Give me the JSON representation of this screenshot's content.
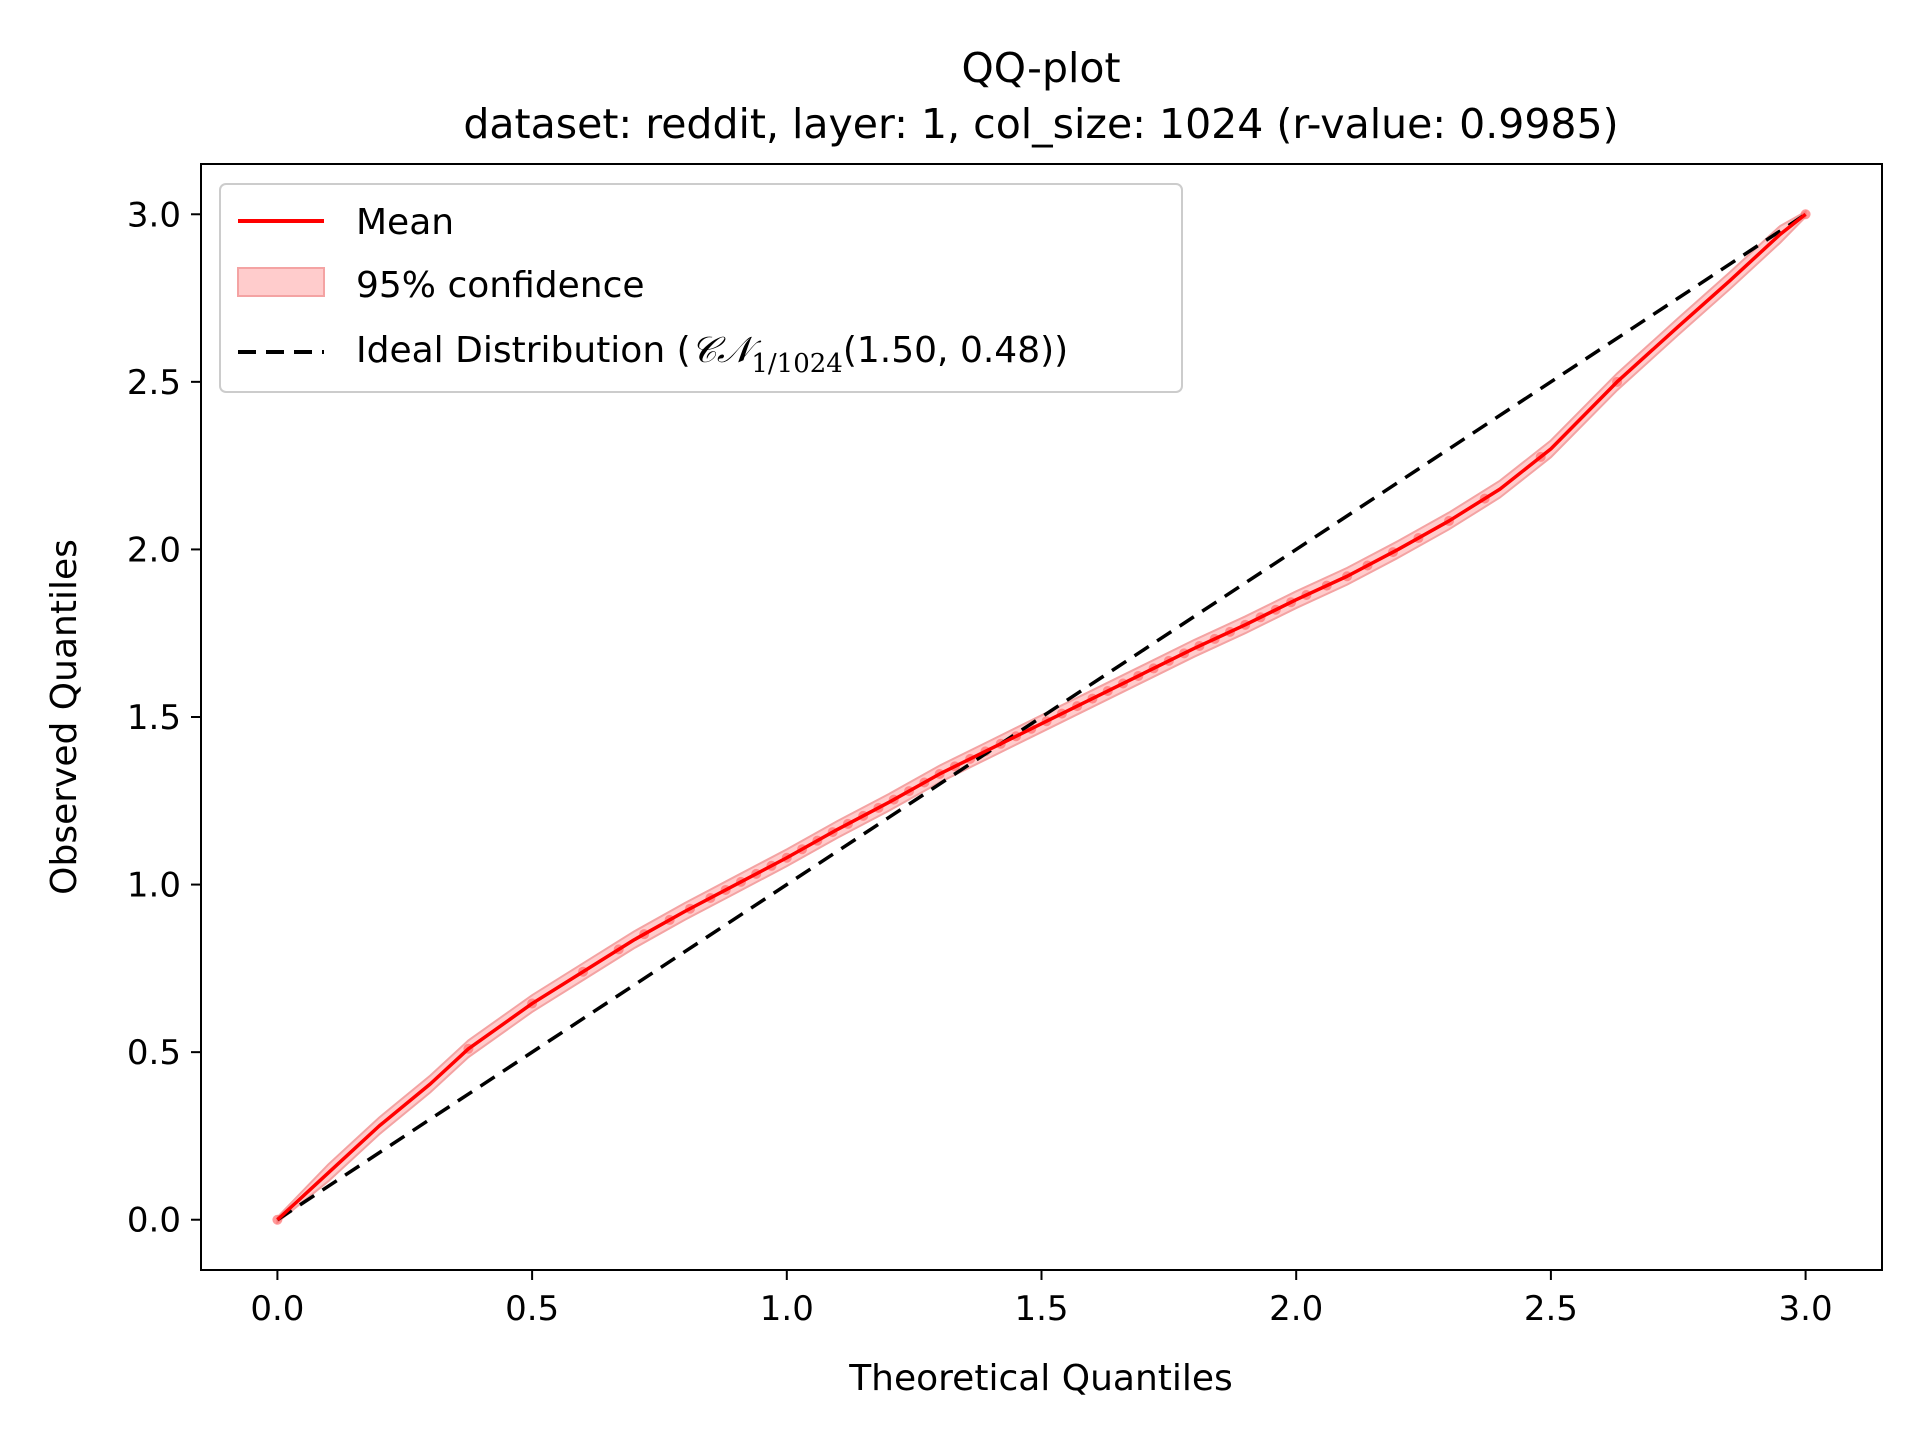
{
  "chart_data": {
    "type": "line",
    "title": "QQ-plot",
    "subtitle": "dataset: reddit, layer: 1, col_size: 1024 (r-value: 0.9985)",
    "xlabel": "Theoretical Quantiles",
    "ylabel": "Observed Quantiles",
    "xlim": [
      -0.15,
      3.15
    ],
    "ylim": [
      -0.15,
      3.15
    ],
    "xticks": [
      0.0,
      0.5,
      1.0,
      1.5,
      2.0,
      2.5,
      3.0
    ],
    "yticks": [
      0.0,
      0.5,
      1.0,
      1.5,
      2.0,
      2.5,
      3.0
    ],
    "tick_labels": [
      "0.0",
      "0.5",
      "1.0",
      "1.5",
      "2.0",
      "2.5",
      "3.0"
    ],
    "grid": false,
    "legend_position": "top-left",
    "legend": {
      "mean": "Mean",
      "confidence": "95% confidence",
      "ideal_prefix": "Ideal Distribution (",
      "ideal_symbol": "𝒞𝒩",
      "ideal_subscript": "1/1024",
      "ideal_suffix": "(1.50, 0.48))"
    },
    "colors": {
      "mean": "#ff0000",
      "confidence_fill": "#ffcccc",
      "confidence_edge": "#f4a3a3",
      "ideal": "#000000"
    },
    "series": [
      {
        "name": "Mean",
        "x": [
          0.0,
          0.1,
          0.2,
          0.3,
          0.375,
          0.5,
          0.6,
          0.7,
          0.8,
          0.9,
          1.0,
          1.1,
          1.2,
          1.3,
          1.4,
          1.5,
          1.6,
          1.7,
          1.8,
          1.9,
          2.0,
          2.1,
          2.2,
          2.3,
          2.4,
          2.5,
          2.63,
          2.75,
          2.85,
          2.95,
          3.0
        ],
        "y": [
          0.0,
          0.14,
          0.28,
          0.405,
          0.51,
          0.645,
          0.74,
          0.835,
          0.92,
          1.0,
          1.08,
          1.165,
          1.245,
          1.33,
          1.405,
          1.48,
          1.555,
          1.63,
          1.705,
          1.775,
          1.85,
          1.92,
          2.0,
          2.085,
          2.18,
          2.3,
          2.5,
          2.665,
          2.8,
          2.94,
          3.0
        ]
      },
      {
        "name": "Ideal Distribution",
        "x": [
          0.0,
          3.0
        ],
        "y": [
          0.0,
          3.0
        ]
      }
    ],
    "confidence_halfwidth": 0.025,
    "quantile_markers": {
      "x": [
        0.0,
        0.375,
        0.5,
        0.6,
        0.67,
        0.72,
        0.77,
        0.81,
        0.85,
        0.88,
        0.91,
        0.94,
        0.97,
        1.0,
        1.03,
        1.06,
        1.09,
        1.12,
        1.15,
        1.18,
        1.21,
        1.24,
        1.27,
        1.3,
        1.33,
        1.36,
        1.39,
        1.42,
        1.45,
        1.48,
        1.51,
        1.54,
        1.57,
        1.6,
        1.63,
        1.66,
        1.69,
        1.72,
        1.75,
        1.78,
        1.81,
        1.84,
        1.87,
        1.9,
        1.93,
        1.96,
        1.99,
        2.02,
        2.06,
        2.1,
        2.14,
        2.19,
        2.24,
        2.3,
        2.37,
        2.48,
        2.63,
        3.0
      ]
    }
  }
}
